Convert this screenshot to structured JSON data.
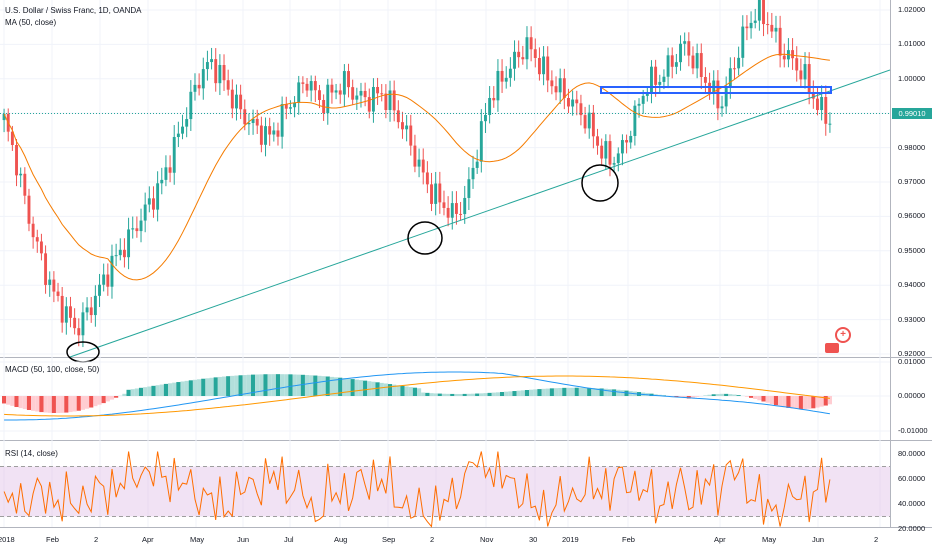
{
  "header": {
    "symbol_title": "U.S. Dollar / Swiss Franc, 1D, OANDA",
    "ma_label": "MA (50, close)",
    "last_price": "0.99010"
  },
  "macd_panel": {
    "label": "MACD (50, 100, close, 50)",
    "ticks": [
      "0.01000",
      "0.00000",
      "-0.01000"
    ]
  },
  "rsi_panel": {
    "label": "RSI (14, close)",
    "ticks": [
      "80.0000",
      "60.0000",
      "40.0000",
      "20.0000"
    ]
  },
  "price_axis": {
    "ticks": [
      "1.02000",
      "1.01000",
      "1.00000",
      "0.99000",
      "0.98000",
      "0.97000",
      "0.96000",
      "0.95000",
      "0.94000",
      "0.93000",
      "0.92000"
    ]
  },
  "time_axis": {
    "labels": [
      "2018",
      "Feb",
      "2",
      "Apr",
      "May",
      "Jun",
      "Jul",
      "Aug",
      "Sep",
      "2",
      "Nov",
      "30",
      "2019",
      "Feb",
      "Apr",
      "May",
      "Jun",
      "2"
    ]
  },
  "colors": {
    "up": "#26a69a",
    "down": "#ef5350",
    "ma": "#f57c00",
    "trendline": "#26a69a",
    "hband": "#2962ff",
    "macd_line": "#2196f3",
    "signal_line": "#ff9800",
    "rsi_line": "#ff6d00",
    "rsi_band": "#e1bee7"
  },
  "chart_data": {
    "type": "candlestick",
    "y_range": [
      0.92,
      1.023
    ],
    "series_close": [
      0.988,
      0.976,
      0.96,
      0.948,
      0.938,
      0.932,
      0.927,
      0.933,
      0.94,
      0.947,
      0.952,
      0.958,
      0.964,
      0.97,
      0.98,
      0.99,
      1.0,
      1.005,
      1.0,
      0.993,
      0.988,
      0.985,
      0.983,
      0.99,
      0.995,
      1.0,
      0.993,
      0.996,
      0.999,
      0.995,
      0.994,
      0.996,
      0.992,
      0.985,
      0.976,
      0.968,
      0.964,
      0.96,
      0.965,
      0.98,
      0.995,
      1.0,
      1.005,
      1.01,
      1.005,
      0.999,
      0.996,
      0.992,
      0.988,
      0.98,
      0.976,
      0.98,
      0.99,
      0.999,
      1.0,
      1.005,
      1.01,
      1.004,
      0.998,
      0.992,
      1.003,
      1.014,
      1.02,
      1.016,
      1.008,
      1.005,
      1.0,
      0.992,
      0.988
    ]
  }
}
